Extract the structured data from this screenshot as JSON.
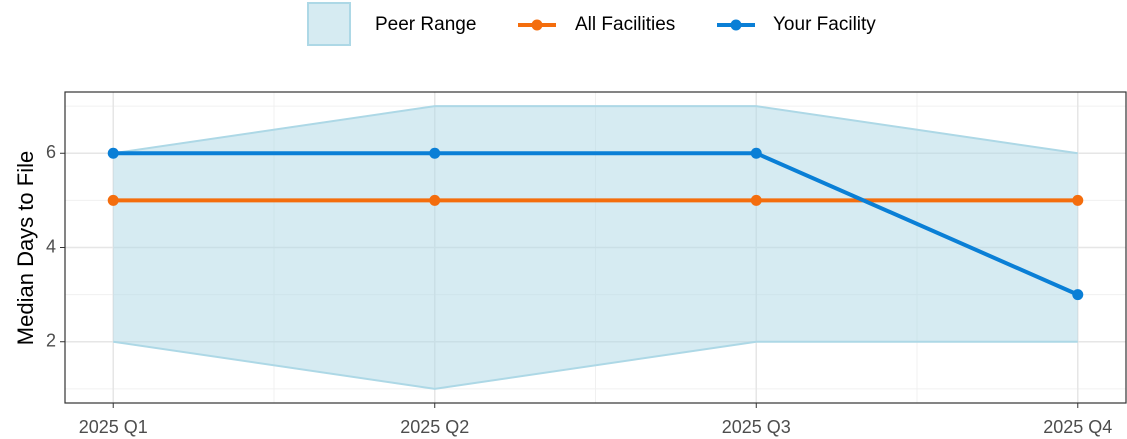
{
  "chart_data": {
    "type": "line",
    "y_label": "Median Days to File",
    "categories": [
      "2025 Q1",
      "2025 Q2",
      "2025 Q3",
      "2025 Q4"
    ],
    "range": {
      "name": "Peer Range",
      "color": "#add8e6",
      "lower": [
        2,
        1,
        2,
        2
      ],
      "upper": [
        6,
        7,
        7,
        6
      ]
    },
    "series": [
      {
        "name": "All Facilities",
        "color": "#f46d0d",
        "values": [
          5,
          5,
          5,
          5
        ]
      },
      {
        "name": "Your Facility",
        "color": "#0a7fd6",
        "values": [
          6,
          6,
          6,
          3
        ]
      }
    ],
    "ylim": [
      0.7,
      7.3
    ],
    "yticks": [
      2,
      4,
      6
    ],
    "grid": true,
    "legend": "top"
  }
}
